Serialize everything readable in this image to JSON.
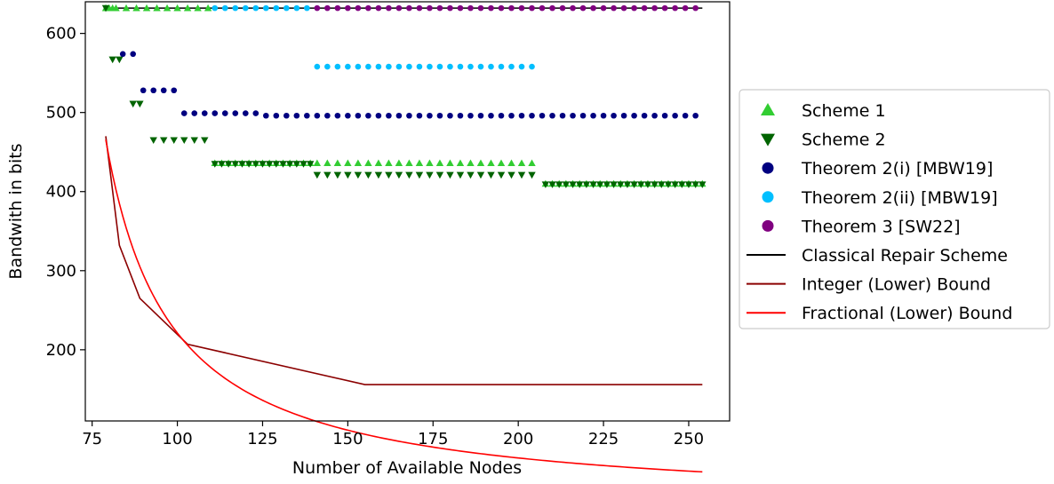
{
  "chart_data": {
    "type": "scatter",
    "title": "",
    "xlabel": "Number of Available Nodes",
    "ylabel": "Bandwith in bits",
    "xlim": [
      73,
      262
    ],
    "ylim": [
      110,
      640
    ],
    "xticks": [
      75,
      100,
      125,
      150,
      175,
      200,
      225,
      250
    ],
    "yticks": [
      200,
      300,
      400,
      500,
      600
    ],
    "grid": false,
    "legend_position": "outside-right",
    "series": [
      {
        "name": "Scheme 1",
        "kind": "marker",
        "marker": "triangle-up",
        "color": "#32cd32",
        "segments": [
          {
            "x_start": 79,
            "x_end": 81,
            "step": 1,
            "y": 632
          },
          {
            "x_start": 82,
            "x_end": 109,
            "step": 3,
            "y": 632
          },
          {
            "x_start": 111,
            "x_end": 139,
            "step": 2,
            "y": 436
          },
          {
            "x_start": 141,
            "x_end": 205,
            "step": 3,
            "y": 436
          },
          {
            "x_start": 208,
            "x_end": 254,
            "step": 2,
            "y": 410
          }
        ]
      },
      {
        "name": "Scheme 2",
        "kind": "marker",
        "marker": "triangle-down",
        "color": "#006400",
        "segments": [
          {
            "x_start": 79,
            "x_end": 79,
            "step": 1,
            "y": 632
          },
          {
            "x_start": 81,
            "x_end": 83,
            "step": 2,
            "y": 567
          },
          {
            "x_start": 87,
            "x_end": 89,
            "step": 2,
            "y": 511
          },
          {
            "x_start": 93,
            "x_end": 108,
            "step": 3,
            "y": 465
          },
          {
            "x_start": 111,
            "x_end": 139,
            "step": 2,
            "y": 435
          },
          {
            "x_start": 141,
            "x_end": 205,
            "step": 3,
            "y": 421
          },
          {
            "x_start": 208,
            "x_end": 254,
            "step": 2,
            "y": 409
          }
        ]
      },
      {
        "name": "Theorem 2(i) [MBW19]",
        "kind": "marker",
        "marker": "circle",
        "color": "#000080",
        "segments": [
          {
            "x_start": 84,
            "x_end": 87,
            "step": 3,
            "y": 574
          },
          {
            "x_start": 90,
            "x_end": 99,
            "step": 3,
            "y": 528
          },
          {
            "x_start": 102,
            "x_end": 123,
            "step": 3,
            "y": 499
          },
          {
            "x_start": 126,
            "x_end": 254,
            "step": 3,
            "y": 496
          }
        ]
      },
      {
        "name": "Theorem 2(ii) [MBW19]",
        "kind": "marker",
        "marker": "circle",
        "color": "#00bfff",
        "segments": [
          {
            "x_start": 111,
            "x_end": 139,
            "step": 3,
            "y": 632
          },
          {
            "x_start": 141,
            "x_end": 204,
            "step": 3,
            "y": 558
          }
        ]
      },
      {
        "name": "Theorem 3 [SW22]",
        "kind": "marker",
        "marker": "circle",
        "color": "#800080",
        "segments": [
          {
            "x_start": 141,
            "x_end": 254,
            "step": 3,
            "y": 632
          }
        ]
      },
      {
        "name": "Classical Repair Scheme",
        "kind": "line",
        "color": "#000000",
        "points": [
          [
            79,
            632
          ],
          [
            254,
            632
          ]
        ]
      },
      {
        "name": "Integer (Lower) Bound",
        "kind": "line",
        "color": "#8b0000",
        "points": [
          [
            79,
            470
          ],
          [
            83,
            332
          ],
          [
            89,
            265
          ],
          [
            103,
            207
          ],
          [
            155,
            156
          ],
          [
            254,
            156
          ]
        ]
      },
      {
        "name": "Fractional (Lower) Bound",
        "kind": "line",
        "color": "#ff0000",
        "fractional_curve": {
          "x_start": 79,
          "x_end": 254,
          "step": 1,
          "formula": "y = 79 * 112 / (x - 60)"
        }
      }
    ]
  }
}
